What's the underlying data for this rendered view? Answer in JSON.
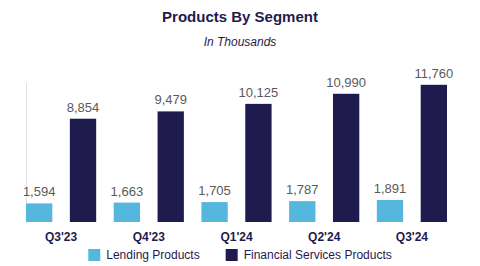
{
  "chart_data": {
    "type": "bar",
    "title": "Products By Segment",
    "subtitle": "In Thousands",
    "categories": [
      "Q3'23",
      "Q4'23",
      "Q1'24",
      "Q2'24",
      "Q3'24"
    ],
    "series": [
      {
        "name": "Lending Products",
        "color": "#55b6de",
        "values": [
          1594,
          1663,
          1705,
          1787,
          1891
        ],
        "value_labels": [
          "1,594",
          "1,663",
          "1,705",
          "1,787",
          "1,891"
        ]
      },
      {
        "name": "Financial Services Products",
        "color": "#1f1b4e",
        "values": [
          8854,
          9479,
          10125,
          10990,
          11760
        ],
        "value_labels": [
          "8,854",
          "9,479",
          "10,125",
          "10,990",
          "11,760"
        ]
      }
    ],
    "ylim": [
      0,
      12000
    ],
    "data_labels": true,
    "tick_labels": "x",
    "grid": false,
    "legend": "bottom"
  }
}
